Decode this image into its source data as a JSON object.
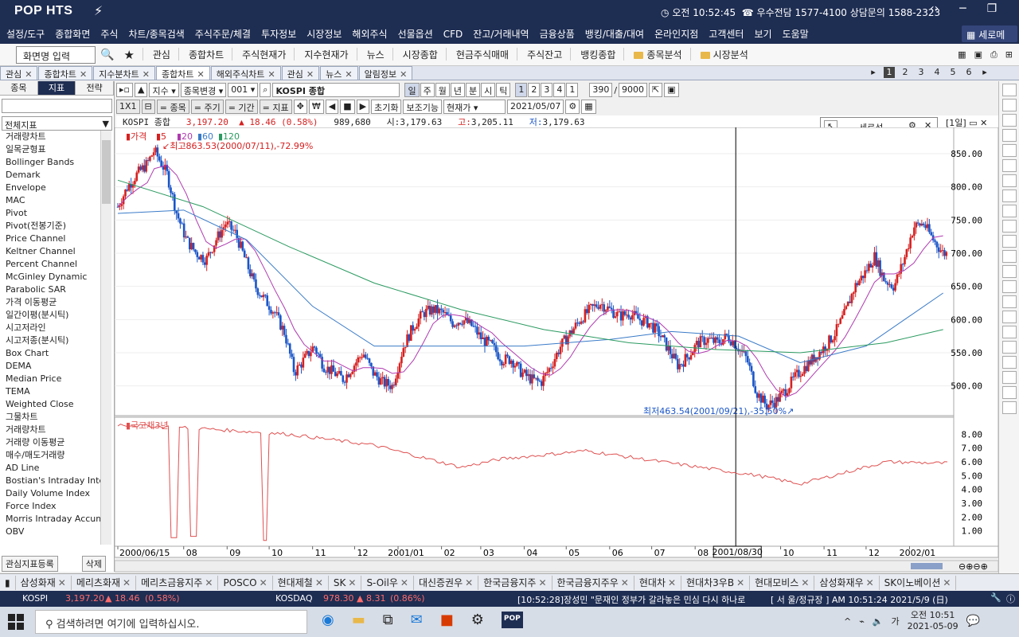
{
  "app": {
    "logo": "POP HTS"
  },
  "titlebar": {
    "clock": "오전 10:52:45",
    "hotline": "우수전담 1577-4100 상담문의 1588-2323"
  },
  "menu": [
    "설정/도구",
    "종합화면",
    "주식",
    "차트/종목검색",
    "주식주문/체결",
    "투자정보",
    "시장정보",
    "해외주식",
    "선물옵션",
    "CFD",
    "잔고/거래내역",
    "금융상품",
    "뱅킹/대출/대여",
    "온라인지점",
    "고객센터",
    "보기",
    "도움말"
  ],
  "shrink_menu": "세로메뉴",
  "toolbar": {
    "screen_input": "화면명 입력",
    "items": [
      "관심",
      "종합차트",
      "주식현재가",
      "지수현재가",
      "뉴스",
      "시장종합",
      "현금주식매매",
      "주식잔고",
      "뱅킹종합"
    ],
    "folders": [
      "종목분석",
      "시장분석"
    ]
  },
  "tabs": [
    {
      "label": "관심",
      "active": false
    },
    {
      "label": "종합차트",
      "active": false
    },
    {
      "label": "지수분차트",
      "active": false
    },
    {
      "label": "종합차트",
      "active": true
    },
    {
      "label": "해외주식차트",
      "active": false
    },
    {
      "label": "관심",
      "active": false
    },
    {
      "label": "뉴스",
      "active": false
    },
    {
      "label": "알림정보",
      "active": false
    }
  ],
  "pages": [
    "1",
    "2",
    "3",
    "4",
    "5",
    "6"
  ],
  "leftpanel": {
    "tabs": [
      "종목",
      "지표",
      "전략"
    ],
    "select": "전체지표",
    "indicators": [
      "거래량차트",
      "일목균형표",
      "Bollinger Bands",
      "Demark",
      "Envelope",
      "MAC",
      "Pivot",
      "Pivot(전봉기준)",
      "Price Channel",
      "Keltner Channel",
      "Percent Channel",
      "McGinley Dynamic",
      "Parabolic SAR",
      "가격 이동평균",
      "일간이평(분시틱)",
      "시고저라인",
      "시고저종(분시틱)",
      "Box Chart",
      "DEMA",
      "Median Price",
      "TEMA",
      "Weighted Close",
      "그물차트",
      "거래량차트",
      "거래량 이동평균",
      "매수/매도거래량",
      "AD Line",
      "Bostian's Intraday Intens",
      "Daily Volume Index",
      "Force Index",
      "Morris Intraday Accumu",
      "OBV"
    ],
    "register": "관심지표등록",
    "delete": "삭제"
  },
  "controls": {
    "index_type": "지수",
    "change": "종목변경",
    "code": "001",
    "name": "KOSPI 종합",
    "periods": [
      "일",
      "주",
      "월",
      "년",
      "분",
      "시",
      "틱"
    ],
    "nums": [
      "1",
      "2",
      "3",
      "4",
      "1"
    ],
    "count": "390",
    "total": "9000",
    "zoom": "1X1",
    "labels": [
      "종목",
      "주기",
      "기간",
      "지표"
    ],
    "reset": "초기화",
    "aux": "보조기능",
    "price_type": "현재가",
    "date": "2021/05/07"
  },
  "info": {
    "name": "KOSPI 종합",
    "price": "3,197.20",
    "arrow": "▲",
    "chg": "18.46",
    "pct": "(0.58%)",
    "vol": "989,680",
    "open_lbl": "시:",
    "open": "3,179.63",
    "high_lbl": "고:",
    "high": "3,205.11",
    "low_lbl": "저:",
    "low": "3,179.63"
  },
  "serose": "세로선",
  "period_label": "[1일]",
  "chart_data": {
    "type": "line",
    "legend": {
      "label": "가격",
      "ma": [
        "5",
        "20",
        "60",
        "120"
      ]
    },
    "high_annotation": "최고863.53(2000/07/11),-72.99%",
    "low_annotation": "최저463.54(2001/09/21),-35.50%",
    "y_ticks": [
      "850.00",
      "800.00",
      "750.00",
      "700.00",
      "650.00",
      "600.00",
      "550.00",
      "500.00"
    ],
    "ylim": [
      460,
      880
    ],
    "x_ticks": [
      "2000/06/15",
      "08",
      "09",
      "10",
      "11",
      "12",
      "2001/01",
      "02",
      "03",
      "04",
      "05",
      "06",
      "07",
      "08",
      "10",
      "11",
      "12",
      "2002/01"
    ],
    "cursor_date": "2001/08/30",
    "price": [
      [
        "2000-06-15",
        770
      ],
      [
        "2000-06-22",
        800
      ],
      [
        "2000-06-29",
        820
      ],
      [
        "2000-07-06",
        835
      ],
      [
        "2000-07-11",
        855
      ],
      [
        "2000-07-20",
        820
      ],
      [
        "2000-07-27",
        760
      ],
      [
        "2000-08-03",
        720
      ],
      [
        "2000-08-10",
        700
      ],
      [
        "2000-08-17",
        690
      ],
      [
        "2000-08-24",
        720
      ],
      [
        "2000-08-31",
        745
      ],
      [
        "2000-09-07",
        730
      ],
      [
        "2000-09-14",
        690
      ],
      [
        "2000-09-21",
        650
      ],
      [
        "2000-09-28",
        630
      ],
      [
        "2000-10-05",
        610
      ],
      [
        "2000-10-12",
        580
      ],
      [
        "2000-10-19",
        520
      ],
      [
        "2000-10-26",
        540
      ],
      [
        "2000-11-02",
        560
      ],
      [
        "2000-11-09",
        530
      ],
      [
        "2000-11-16",
        520
      ],
      [
        "2000-11-23",
        510
      ],
      [
        "2000-11-30",
        530
      ],
      [
        "2000-12-07",
        550
      ],
      [
        "2000-12-14",
        520
      ],
      [
        "2000-12-21",
        505
      ],
      [
        "2000-12-28",
        500
      ],
      [
        "2001-01-05",
        560
      ],
      [
        "2001-01-12",
        590
      ],
      [
        "2001-01-19",
        610
      ],
      [
        "2001-01-26",
        615
      ],
      [
        "2001-02-02",
        610
      ],
      [
        "2001-02-09",
        595
      ],
      [
        "2001-02-16",
        600
      ],
      [
        "2001-02-23",
        590
      ],
      [
        "2001-03-02",
        570
      ],
      [
        "2001-03-09",
        560
      ],
      [
        "2001-03-16",
        540
      ],
      [
        "2001-03-23",
        540
      ],
      [
        "2001-03-30",
        520
      ],
      [
        "2001-04-06",
        510
      ],
      [
        "2001-04-13",
        505
      ],
      [
        "2001-04-20",
        530
      ],
      [
        "2001-04-27",
        560
      ],
      [
        "2001-05-04",
        580
      ],
      [
        "2001-05-11",
        600
      ],
      [
        "2001-05-18",
        615
      ],
      [
        "2001-05-25",
        625
      ],
      [
        "2001-06-01",
        615
      ],
      [
        "2001-06-08",
        605
      ],
      [
        "2001-06-15",
        610
      ],
      [
        "2001-06-22",
        600
      ],
      [
        "2001-06-29",
        595
      ],
      [
        "2001-07-06",
        580
      ],
      [
        "2001-07-13",
        555
      ],
      [
        "2001-07-20",
        530
      ],
      [
        "2001-07-27",
        545
      ],
      [
        "2001-08-03",
        565
      ],
      [
        "2001-08-10",
        570
      ],
      [
        "2001-08-17",
        565
      ],
      [
        "2001-08-24",
        575
      ],
      [
        "2001-08-31",
        560
      ],
      [
        "2001-09-07",
        540
      ],
      [
        "2001-09-14",
        490
      ],
      [
        "2001-09-21",
        470
      ],
      [
        "2001-09-28",
        478
      ],
      [
        "2001-10-05",
        495
      ],
      [
        "2001-10-12",
        515
      ],
      [
        "2001-10-19",
        530
      ],
      [
        "2001-10-26",
        545
      ],
      [
        "2001-11-02",
        560
      ],
      [
        "2001-11-09",
        580
      ],
      [
        "2001-11-16",
        610
      ],
      [
        "2001-11-23",
        650
      ],
      [
        "2001-11-30",
        670
      ],
      [
        "2001-12-07",
        695
      ],
      [
        "2001-12-14",
        660
      ],
      [
        "2001-12-21",
        650
      ],
      [
        "2001-12-28",
        690
      ],
      [
        "2002-01-04",
        740
      ],
      [
        "2002-01-11",
        745
      ],
      [
        "2002-01-18",
        720
      ],
      [
        "2002-01-25",
        700
      ]
    ],
    "ma120": [
      [
        "2000-06-15",
        810
      ],
      [
        "2000-08-15",
        770
      ],
      [
        "2000-10-15",
        710
      ],
      [
        "2000-12-15",
        655
      ],
      [
        "2001-02-15",
        615
      ],
      [
        "2001-04-15",
        585
      ],
      [
        "2001-06-15",
        565
      ],
      [
        "2001-08-15",
        555
      ],
      [
        "2001-10-15",
        550
      ],
      [
        "2001-12-15",
        565
      ],
      [
        "2002-01-25",
        585
      ]
    ],
    "ma60": [
      [
        "2000-06-15",
        760
      ],
      [
        "2000-08-01",
        765
      ],
      [
        "2000-09-15",
        720
      ],
      [
        "2000-11-01",
        620
      ],
      [
        "2000-12-15",
        560
      ],
      [
        "2001-02-01",
        560
      ],
      [
        "2001-04-01",
        560
      ],
      [
        "2001-06-01",
        570
      ],
      [
        "2001-07-15",
        582
      ],
      [
        "2001-09-01",
        575
      ],
      [
        "2001-10-15",
        535
      ],
      [
        "2001-12-01",
        560
      ],
      [
        "2002-01-25",
        640
      ]
    ],
    "sub_panel": {
      "label": "국고채3년",
      "y_ticks": [
        "8.00",
        "7.00",
        "6.00",
        "5.00",
        "4.00",
        "3.00",
        "2.00",
        "1.00"
      ],
      "ylim": [
        0,
        9
      ],
      "values": [
        [
          "2000-06-15",
          8.7
        ],
        [
          "2000-08-15",
          8.4
        ],
        [
          "2000-10-15",
          8.0
        ],
        [
          "2000-12-15",
          7.2
        ],
        [
          "2001-01-15",
          6.4
        ],
        [
          "2001-02-15",
          5.6
        ],
        [
          "2001-03-15",
          6.2
        ],
        [
          "2001-05-15",
          6.8
        ],
        [
          "2001-07-15",
          5.9
        ],
        [
          "2001-09-15",
          5.0
        ],
        [
          "2001-10-15",
          4.4
        ],
        [
          "2001-11-15",
          5.2
        ],
        [
          "2001-12-15",
          6.0
        ],
        [
          "2002-01-25",
          5.9
        ]
      ],
      "dips": [
        [
          "2000-07-25",
          0.5
        ],
        [
          "2000-08-08",
          0.6
        ],
        [
          "2000-09-28",
          0.3
        ]
      ]
    }
  },
  "favorites": [
    "삼성화재",
    "메리츠화재",
    "메리츠금융지주",
    "POSCO",
    "현대제철",
    "SK",
    "S-Oil우",
    "대신증권우",
    "한국금융지주",
    "한국금융지주우",
    "현대차",
    "현대차3우B",
    "현대모비스",
    "삼성화재우",
    "SK이노베이션"
  ],
  "ticker": {
    "kospi_lbl": "KOSPI",
    "kospi": "3,197.20",
    "kospi_chg": "▲ 18.46",
    "kospi_pct": "(0.58%)",
    "kosdaq_lbl": "KOSDAQ",
    "kosdaq": "978.30",
    "kosdaq_chg": "▲ 8.31",
    "kosdaq_pct": "(0.86%)",
    "news": "[10:52:28]장성민 \"문재인 정부가 갈라놓은 민심 다시 하나로",
    "status": "[ 서  울/정규장 ] AM 10:51:24  2021/5/9 (日)"
  },
  "taskbar": {
    "search": "검색하려면 여기에 입력하십시오.",
    "ime": "가",
    "time": "오전 10:51",
    "date": "2021-05-09"
  },
  "colors": {
    "up": "#d62020",
    "down": "#1a55c8",
    "ma5": "#d62020",
    "ma20": "#b03ab0",
    "ma60": "#3a7bc8",
    "ma120": "#2a9a60",
    "nav": "#1e2d52"
  }
}
